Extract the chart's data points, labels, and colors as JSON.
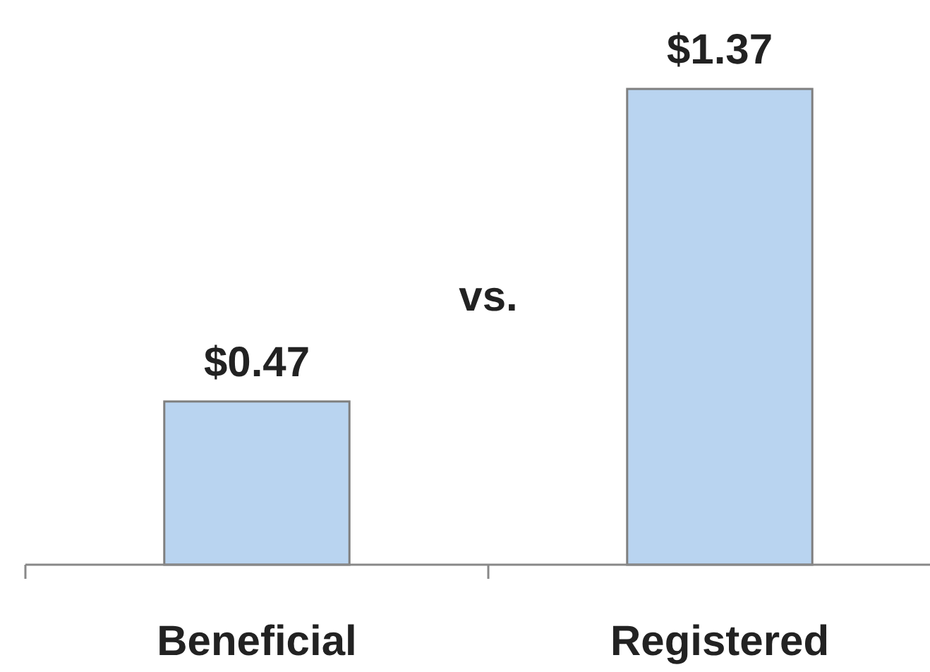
{
  "chart_data": {
    "type": "bar",
    "categories": [
      "Beneficial",
      "Registered"
    ],
    "values": [
      0.47,
      1.37
    ],
    "value_labels": [
      "$0.47",
      "$1.37"
    ],
    "color": "#b9d4f0",
    "annotations": [
      "vs."
    ]
  }
}
